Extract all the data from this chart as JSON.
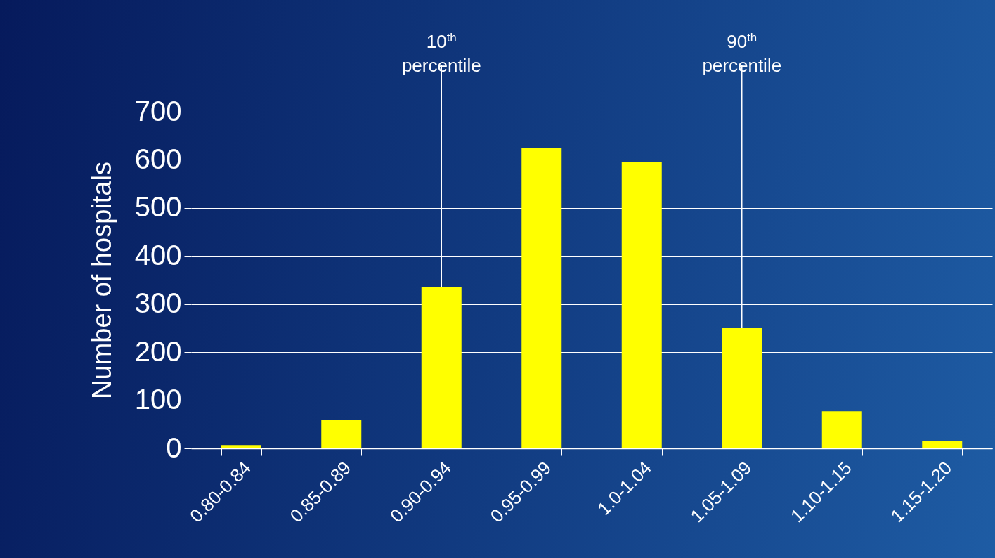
{
  "chart_data": {
    "type": "bar",
    "ylabel": "Number of hospitals",
    "categories": [
      "0.80-0.84",
      "0.85-0.89",
      "0.90-0.94",
      "0.95-0.99",
      "1.0-1.04",
      "1.05-1.09",
      "1.10-1.15",
      "1.15-1.20"
    ],
    "values": [
      7,
      60,
      335,
      624,
      596,
      250,
      77,
      16
    ],
    "color": "#ffff00",
    "ylim": [
      0,
      700
    ],
    "yticks": [
      0,
      100,
      200,
      300,
      400,
      500,
      600,
      700
    ],
    "grid": "y",
    "ref_lines": [
      {
        "axis": "x",
        "value": "0.90-0.94",
        "label": "10$^{th}$ percentile",
        "color": "#ffffff"
      },
      {
        "axis": "x",
        "value": "1.05-1.09",
        "label": "90$^{th}$ percentile",
        "color": "#ffffff"
      }
    ]
  }
}
